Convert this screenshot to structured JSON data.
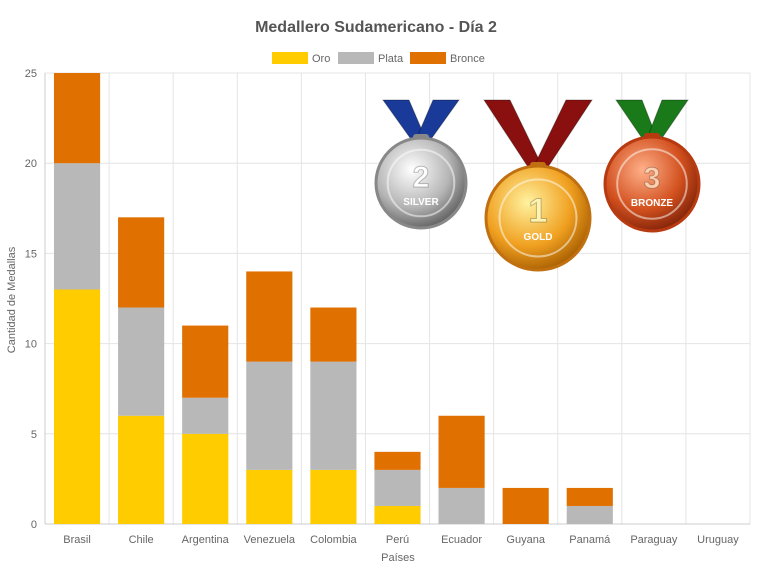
{
  "chart_data": {
    "type": "bar",
    "stacked": true,
    "title": "Medallero Sudamericano - Día 2",
    "xlabel": "Países",
    "ylabel": "Cantidad de Medallas",
    "ylim": [
      0,
      25
    ],
    "yticks": [
      0,
      5,
      10,
      15,
      20,
      25
    ],
    "grid": true,
    "legend_position": "top-center",
    "categories": [
      "Brasil",
      "Chile",
      "Argentina",
      "Venezuela",
      "Colombia",
      "Perú",
      "Ecuador",
      "Guyana",
      "Panamá",
      "Paraguay",
      "Uruguay"
    ],
    "series": [
      {
        "name": "Oro",
        "color": "#ffcc00",
        "values": [
          13,
          6,
          5,
          3,
          3,
          1,
          0,
          0,
          0,
          0,
          0
        ]
      },
      {
        "name": "Plata",
        "color": "#b8b8b8",
        "values": [
          7,
          6,
          2,
          6,
          6,
          2,
          2,
          0,
          1,
          0,
          0
        ]
      },
      {
        "name": "Bronce",
        "color": "#e07000",
        "values": [
          5,
          5,
          4,
          5,
          3,
          1,
          4,
          2,
          1,
          0,
          0
        ]
      }
    ]
  },
  "medals": [
    {
      "label": "SILVER",
      "number": "2",
      "ribbon": "#1a3a9a",
      "ring": "#888888"
    },
    {
      "label": "GOLD",
      "number": "1",
      "ribbon": "#8a1010",
      "ring": "#c07010"
    },
    {
      "label": "BRONZE",
      "number": "3",
      "ribbon": "#1a7a1a",
      "ring": "#b83a10"
    }
  ]
}
